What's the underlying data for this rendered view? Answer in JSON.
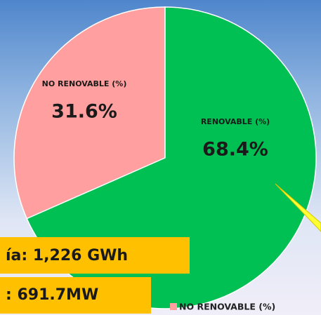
{
  "chart_data": {
    "type": "pie",
    "categories": [
      "NO RENOVABLE (%)",
      "RENOVABLE (%)"
    ],
    "values": [
      31.6,
      68.4
    ],
    "value_labels": [
      "31.6%",
      "68.4%"
    ],
    "colors": [
      "#ff9f9f",
      "#00c054"
    ],
    "annotations": [
      "ía: 1,226 GWh",
      ": 691.7MW"
    ],
    "legend": "bottom"
  }
}
